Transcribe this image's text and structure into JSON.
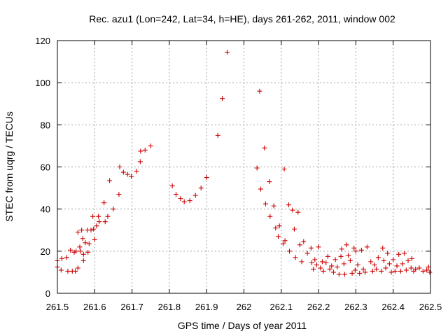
{
  "chart_data": {
    "type": "scatter",
    "title": "Rec. azu1 (Lon=242, Lat=34, h=HE), days 261-262, 2011, window 002",
    "xlabel": "GPS time / Days of year 2011",
    "ylabel": "STEC from uqrg / TECUs",
    "xlim": [
      261.5,
      262.5
    ],
    "ylim": [
      0,
      120
    ],
    "xticks": [
      261.5,
      261.6,
      261.7,
      261.8,
      261.9,
      262.0,
      262.1,
      262.2,
      262.3,
      262.4,
      262.5
    ],
    "xtick_labels": [
      "261.5",
      "261.6",
      "261.7",
      "261.8",
      "261.9",
      "262",
      "262.1",
      "262.2",
      "262.3",
      "262.4",
      "262.5"
    ],
    "yticks": [
      0,
      20,
      40,
      60,
      80,
      100,
      120
    ],
    "ytick_labels": [
      "0",
      "20",
      "40",
      "60",
      "80",
      "100",
      "120"
    ],
    "grid": true,
    "marker": "plus",
    "color": "#cc0000",
    "series": [
      {
        "name": "STEC",
        "points": [
          [
            261.5,
            15.5
          ],
          [
            261.5,
            12.5
          ],
          [
            261.51,
            11.0
          ],
          [
            261.512,
            16.5
          ],
          [
            261.525,
            17.0
          ],
          [
            261.528,
            10.5
          ],
          [
            261.535,
            20.5
          ],
          [
            261.54,
            10.5
          ],
          [
            261.545,
            19.5
          ],
          [
            261.548,
            10.5
          ],
          [
            261.55,
            20.0
          ],
          [
            261.555,
            29.0
          ],
          [
            261.555,
            12.0
          ],
          [
            261.56,
            22.0
          ],
          [
            261.562,
            20.0
          ],
          [
            261.565,
            30.0
          ],
          [
            261.568,
            26.0
          ],
          [
            261.57,
            18.5
          ],
          [
            261.57,
            15.5
          ],
          [
            261.575,
            24.0
          ],
          [
            261.58,
            30.0
          ],
          [
            261.582,
            19.5
          ],
          [
            261.585,
            23.5
          ],
          [
            261.59,
            30.0
          ],
          [
            261.595,
            36.5
          ],
          [
            261.597,
            30.5
          ],
          [
            261.6,
            25.5
          ],
          [
            261.605,
            32.0
          ],
          [
            261.61,
            36.5
          ],
          [
            261.612,
            34.0
          ],
          [
            261.625,
            43.0
          ],
          [
            261.628,
            34.0
          ],
          [
            261.635,
            36.5
          ],
          [
            261.64,
            53.5
          ],
          [
            261.65,
            40.0
          ],
          [
            261.665,
            47.0
          ],
          [
            261.667,
            60.0
          ],
          [
            261.677,
            57.5
          ],
          [
            261.688,
            56.5
          ],
          [
            261.698,
            55.5
          ],
          [
            261.712,
            58.0
          ],
          [
            261.722,
            62.5
          ],
          [
            261.723,
            67.5
          ],
          [
            261.735,
            68.0
          ],
          [
            261.75,
            70.0
          ],
          [
            261.808,
            51.0
          ],
          [
            261.818,
            47.0
          ],
          [
            261.83,
            45.0
          ],
          [
            261.84,
            43.5
          ],
          [
            261.855,
            44.0
          ],
          [
            261.87,
            46.5
          ],
          [
            261.885,
            50.0
          ],
          [
            261.9,
            55.0
          ],
          [
            261.93,
            75.0
          ],
          [
            261.942,
            92.5
          ],
          [
            261.955,
            114.5
          ],
          [
            262.035,
            59.5
          ],
          [
            262.042,
            96.0
          ],
          [
            262.045,
            49.5
          ],
          [
            262.055,
            69.0
          ],
          [
            262.058,
            42.5
          ],
          [
            262.068,
            53.0
          ],
          [
            262.07,
            36.5
          ],
          [
            262.08,
            41.5
          ],
          [
            262.085,
            31.0
          ],
          [
            262.092,
            27.0
          ],
          [
            262.095,
            32.0
          ],
          [
            262.105,
            23.5
          ],
          [
            262.108,
            59.0
          ],
          [
            262.11,
            25.0
          ],
          [
            262.12,
            42.0
          ],
          [
            262.122,
            20.0
          ],
          [
            262.13,
            39.5
          ],
          [
            262.135,
            30.5
          ],
          [
            262.138,
            17.0
          ],
          [
            262.145,
            38.5
          ],
          [
            262.15,
            23.0
          ],
          [
            262.155,
            15.0
          ],
          [
            262.16,
            24.5
          ],
          [
            262.17,
            19.0
          ],
          [
            262.18,
            21.5
          ],
          [
            262.182,
            14.5
          ],
          [
            262.186,
            11.5
          ],
          [
            262.19,
            16.0
          ],
          [
            262.195,
            13.5
          ],
          [
            262.2,
            22.0
          ],
          [
            262.205,
            12.0
          ],
          [
            262.21,
            15.0
          ],
          [
            262.213,
            10.5
          ],
          [
            262.22,
            14.5
          ],
          [
            262.225,
            17.5
          ],
          [
            262.23,
            11.5
          ],
          [
            262.235,
            13.0
          ],
          [
            262.24,
            10.0
          ],
          [
            262.245,
            16.0
          ],
          [
            262.25,
            12.5
          ],
          [
            262.255,
            9.0
          ],
          [
            262.26,
            17.5
          ],
          [
            262.262,
            21.0
          ],
          [
            262.268,
            14.0
          ],
          [
            262.27,
            9.0
          ],
          [
            262.275,
            23.0
          ],
          [
            262.28,
            18.0
          ],
          [
            262.285,
            15.5
          ],
          [
            262.29,
            9.5
          ],
          [
            262.295,
            21.5
          ],
          [
            262.298,
            11.0
          ],
          [
            262.3,
            20.0
          ],
          [
            262.305,
            13.5
          ],
          [
            262.31,
            9.5
          ],
          [
            262.315,
            20.5
          ],
          [
            262.32,
            11.5
          ],
          [
            262.325,
            10.0
          ],
          [
            262.33,
            22.0
          ],
          [
            262.34,
            15.0
          ],
          [
            262.345,
            10.5
          ],
          [
            262.35,
            13.5
          ],
          [
            262.355,
            11.5
          ],
          [
            262.36,
            17.0
          ],
          [
            262.368,
            10.5
          ],
          [
            262.372,
            21.5
          ],
          [
            262.375,
            15.5
          ],
          [
            262.38,
            12.0
          ],
          [
            262.385,
            19.0
          ],
          [
            262.39,
            14.0
          ],
          [
            262.395,
            10.0
          ],
          [
            262.4,
            16.0
          ],
          [
            262.405,
            10.5
          ],
          [
            262.41,
            13.0
          ],
          [
            262.415,
            18.5
          ],
          [
            262.42,
            10.5
          ],
          [
            262.425,
            14.0
          ],
          [
            262.43,
            19.0
          ],
          [
            262.435,
            11.0
          ],
          [
            262.44,
            15.5
          ],
          [
            262.448,
            12.0
          ],
          [
            262.45,
            16.5
          ],
          [
            262.455,
            10.5
          ],
          [
            262.46,
            11.5
          ],
          [
            262.47,
            12.0
          ],
          [
            262.48,
            10.5
          ],
          [
            262.49,
            11.0
          ],
          [
            262.495,
            12.5
          ],
          [
            262.498,
            10.0
          ]
        ]
      }
    ]
  }
}
